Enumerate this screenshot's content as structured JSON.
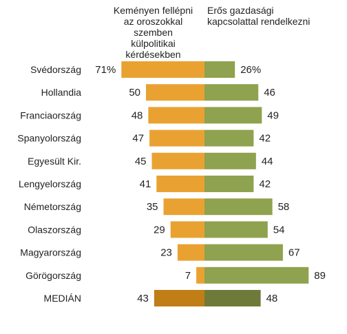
{
  "chart_data": {
    "type": "bar",
    "orientation": "horizontal-diverging",
    "series": [
      {
        "name": "Keményen fellépni az oroszokkal szemben külpolitikai kérdésekben",
        "values": [
          71,
          50,
          48,
          47,
          45,
          41,
          35,
          29,
          23,
          7,
          43
        ],
        "labels": [
          "71%",
          "50",
          "48",
          "47",
          "45",
          "41",
          "35",
          "29",
          "23",
          "7",
          "43"
        ]
      },
      {
        "name": "Erős gazdasági kapcsolattal rendelkezni",
        "values": [
          26,
          46,
          49,
          42,
          44,
          42,
          58,
          54,
          67,
          89,
          48
        ],
        "labels": [
          "26%",
          "46",
          "49",
          "42",
          "44",
          "42",
          "58",
          "54",
          "67",
          "89",
          "48"
        ]
      }
    ],
    "categories": [
      "Svédország",
      "Hollandia",
      "Franciaország",
      "Spanyolország",
      "Egyesült Kir.",
      "Lengyelország",
      "Németország",
      "Olaszország",
      "Magyarország",
      "Görögország",
      "MEDIÁN"
    ],
    "header_left": [
      "Keményen fellépni",
      "az oroszokkal szemben",
      "külpolitikai kérdésekben"
    ],
    "header_right": [
      "Erős gazdasági",
      "kapcsolattal rendelkezni"
    ],
    "colors": {
      "left": "#e9a232",
      "right": "#8fa24f",
      "left_median": "#c17d16",
      "right_median": "#6e7a39"
    },
    "xlim": [
      -100,
      100
    ],
    "grid": false,
    "legend": "none"
  }
}
